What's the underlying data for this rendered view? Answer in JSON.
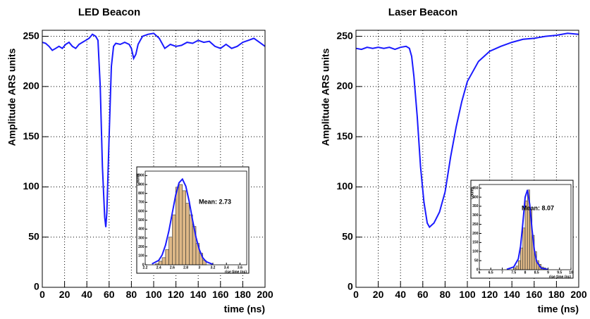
{
  "chart_data": [
    {
      "type": "line",
      "title": "LED Beacon",
      "xlabel": "time (ns)",
      "ylabel": "Amplitude ARS units",
      "xlim": [
        0,
        200
      ],
      "ylim": [
        0,
        256
      ],
      "xticks": [
        0,
        20,
        40,
        60,
        80,
        100,
        120,
        140,
        160,
        180,
        200
      ],
      "yticks": [
        0,
        50,
        100,
        150,
        200,
        250
      ],
      "grid": true,
      "x": [
        0,
        3,
        6,
        9,
        12,
        15,
        18,
        21,
        24,
        27,
        30,
        33,
        36,
        39,
        42,
        45,
        48,
        50,
        52,
        54,
        56,
        57,
        58,
        60,
        62,
        64,
        66,
        70,
        74,
        78,
        80,
        82,
        84,
        86,
        88,
        90,
        95,
        100,
        105,
        110,
        115,
        120,
        125,
        130,
        135,
        140,
        145,
        150,
        155,
        160,
        165,
        170,
        175,
        180,
        185,
        190,
        195,
        200
      ],
      "series": [
        {
          "color": "#1a1aff",
          "values": [
            244,
            243,
            240,
            236,
            238,
            240,
            238,
            242,
            244,
            240,
            238,
            242,
            244,
            246,
            248,
            252,
            250,
            246,
            200,
            120,
            70,
            60,
            75,
            150,
            220,
            240,
            243,
            242,
            244,
            242,
            238,
            228,
            232,
            242,
            246,
            250,
            252,
            253,
            248,
            238,
            242,
            240,
            241,
            244,
            243,
            246,
            244,
            245,
            240,
            238,
            242,
            238,
            240,
            244,
            246,
            248,
            244,
            240
          ]
        }
      ],
      "inset": {
        "type": "histogram",
        "xlabel": "rise time (ns)",
        "ylabel": "Counts",
        "annotation": "Mean: 2.73",
        "color": "#deb887",
        "xlim": [
          2.2,
          3.7
        ],
        "ylim": [
          0,
          1050
        ],
        "xticks": [
          2.2,
          2.4,
          2.6,
          2.8,
          3,
          3.2,
          3.4,
          3.6
        ],
        "yticks": [
          0,
          100,
          200,
          300,
          400,
          500,
          600,
          700,
          800,
          900,
          1000
        ],
        "bins": [
          2.35,
          2.4,
          2.45,
          2.5,
          2.55,
          2.6,
          2.65,
          2.7,
          2.75,
          2.8,
          2.85,
          2.9,
          2.95,
          3,
          3.05,
          3.1
        ],
        "values": [
          10,
          40,
          80,
          170,
          310,
          560,
          870,
          900,
          830,
          690,
          560,
          430,
          240,
          130,
          50
        ],
        "fit": {
          "color": "#1a1aff",
          "x": [
            2.3,
            2.4,
            2.45,
            2.5,
            2.55,
            2.6,
            2.65,
            2.7,
            2.75,
            2.8,
            2.85,
            2.9,
            2.95,
            3,
            3.05,
            3.1,
            3.2
          ],
          "values": [
            10,
            50,
            110,
            220,
            380,
            580,
            780,
            920,
            960,
            880,
            710,
            500,
            310,
            170,
            80,
            35,
            5
          ]
        }
      }
    },
    {
      "type": "line",
      "title": "Laser Beacon",
      "xlabel": "time (ns)",
      "ylabel": "Amplitude ARS units",
      "xlim": [
        0,
        200
      ],
      "ylim": [
        0,
        256
      ],
      "xticks": [
        0,
        20,
        40,
        60,
        80,
        100,
        120,
        140,
        160,
        180,
        200
      ],
      "yticks": [
        0,
        50,
        100,
        150,
        200,
        250
      ],
      "grid": true,
      "x": [
        0,
        5,
        10,
        15,
        20,
        25,
        30,
        35,
        40,
        45,
        48,
        50,
        52,
        55,
        58,
        61,
        64,
        66,
        68,
        70,
        75,
        80,
        85,
        90,
        95,
        100,
        110,
        120,
        130,
        140,
        150,
        160,
        170,
        180,
        190,
        200
      ],
      "series": [
        {
          "color": "#1a1aff",
          "values": [
            238,
            237,
            239,
            238,
            239,
            238,
            239,
            237,
            239,
            240,
            238,
            230,
            210,
            170,
            120,
            85,
            64,
            60,
            62,
            64,
            75,
            95,
            130,
            160,
            185,
            205,
            225,
            235,
            240,
            244,
            247,
            248,
            250,
            251,
            253,
            252
          ]
        }
      ],
      "inset": {
        "type": "histogram",
        "xlabel": "rise time (ns)",
        "ylabel": "Counts",
        "annotation": "Mean: 8.07",
        "color": "#deb887",
        "xlim": [
          6,
          10
        ],
        "ylim": [
          0,
          470
        ],
        "xticks": [
          6,
          6.5,
          7,
          7.5,
          8,
          8.5,
          9,
          9.5,
          10
        ],
        "yticks": [
          0,
          50,
          100,
          150,
          200,
          250,
          300,
          350,
          400,
          450
        ],
        "bins": [
          7.5,
          7.6,
          7.7,
          7.8,
          7.9,
          8,
          8.1,
          8.2,
          8.3,
          8.4,
          8.5,
          8.6,
          8.7,
          8.8,
          8.9,
          9
        ],
        "values": [
          10,
          20,
          50,
          120,
          230,
          380,
          440,
          330,
          190,
          100,
          50,
          30,
          15,
          10,
          5
        ],
        "fit": {
          "color": "#1a1aff",
          "x": [
            7.2,
            7.5,
            7.7,
            7.8,
            7.9,
            8,
            8.1,
            8.2,
            8.3,
            8.4,
            8.5,
            8.7,
            9
          ],
          "values": [
            2,
            15,
            60,
            130,
            260,
            400,
            440,
            360,
            220,
            110,
            45,
            8,
            1
          ]
        }
      }
    }
  ]
}
